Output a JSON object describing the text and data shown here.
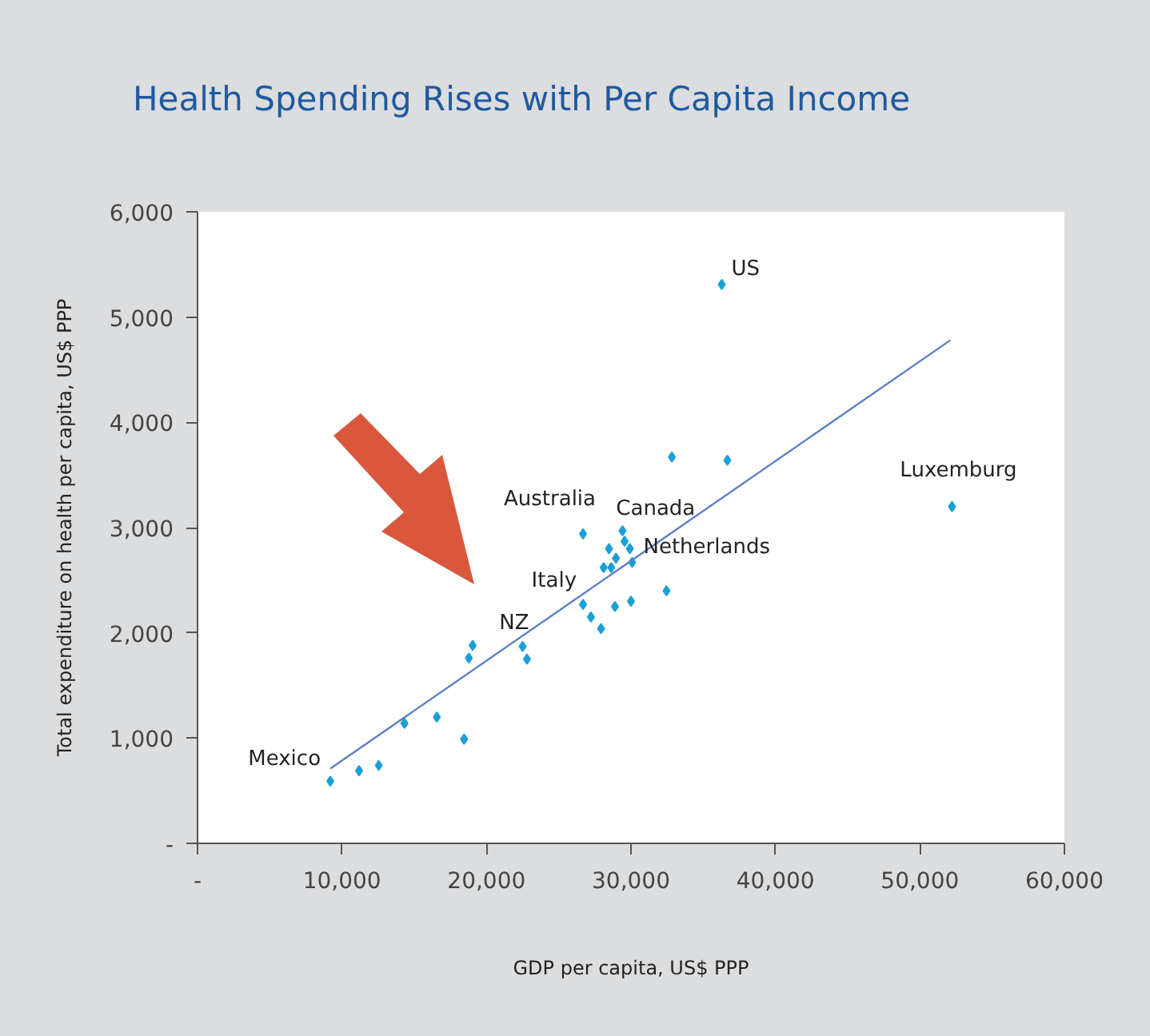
{
  "chart_data": {
    "type": "scatter",
    "title": "Health Spending Rises with Per Capita Income",
    "xlabel": "GDP per capita, US$ PPP",
    "ylabel": "Total expenditure on health per capita, US$ PPP",
    "marker": "diamond",
    "grid": false,
    "xlim": [
      0,
      60000
    ],
    "ylim": [
      0,
      6000
    ],
    "xticks": [
      {
        "value": 0,
        "label": "-"
      },
      {
        "value": 10000,
        "label": "10,000"
      },
      {
        "value": 20000,
        "label": "20,000"
      },
      {
        "value": 30000,
        "label": "30,000"
      },
      {
        "value": 40000,
        "label": "40,000"
      },
      {
        "value": 50000,
        "label": "50,000"
      },
      {
        "value": 60000,
        "label": "60,000"
      }
    ],
    "yticks": [
      {
        "value": 0,
        "label": "-"
      },
      {
        "value": 1000,
        "label": "1,000"
      },
      {
        "value": 2000,
        "label": "2,000"
      },
      {
        "value": 3000,
        "label": "3,000"
      },
      {
        "value": 4000,
        "label": "4,000"
      },
      {
        "value": 5000,
        "label": "5,000"
      },
      {
        "value": 6000,
        "label": "6,000"
      }
    ],
    "series": [
      {
        "color": "#1aa0d8",
        "x": [
          9190,
          11180,
          12540,
          14320,
          16560,
          18450,
          18780,
          19040,
          22500,
          22800,
          26680,
          29410,
          28480,
          29560,
          29920,
          28960,
          28110,
          28630,
          30080,
          32460,
          26680,
          28890,
          30000,
          27230,
          27930,
          32830,
          36670,
          36280,
          52220
        ],
        "values": [
          590,
          690,
          740,
          1140,
          1200,
          990,
          1760,
          1880,
          1870,
          1750,
          2940,
          2970,
          2800,
          2870,
          2800,
          2710,
          2620,
          2620,
          2670,
          2400,
          2270,
          2250,
          2300,
          2150,
          2040,
          3670,
          3640,
          5310,
          3200
        ]
      },
      {
        "type": "line",
        "marker": "none",
        "color": "#5b7fc4",
        "x": [
          9190,
          52100
        ],
        "values": [
          710,
          4780
        ]
      }
    ],
    "annotations": [
      {
        "text": "Mexico",
        "x": 9190,
        "y": 590
      },
      {
        "text": "NZ",
        "x": 22500,
        "y": 1870
      },
      {
        "text": "Australia",
        "x": 26680,
        "y": 2940
      },
      {
        "text": "Canada",
        "x": 29410,
        "y": 2970
      },
      {
        "text": "Netherlands",
        "x": 30080,
        "y": 2670
      },
      {
        "text": "Italy",
        "x": 26680,
        "y": 2270
      },
      {
        "text": "US",
        "x": 36280,
        "y": 5310
      },
      {
        "text": "Luxemburg",
        "x": 52220,
        "y": 3200
      }
    ]
  }
}
